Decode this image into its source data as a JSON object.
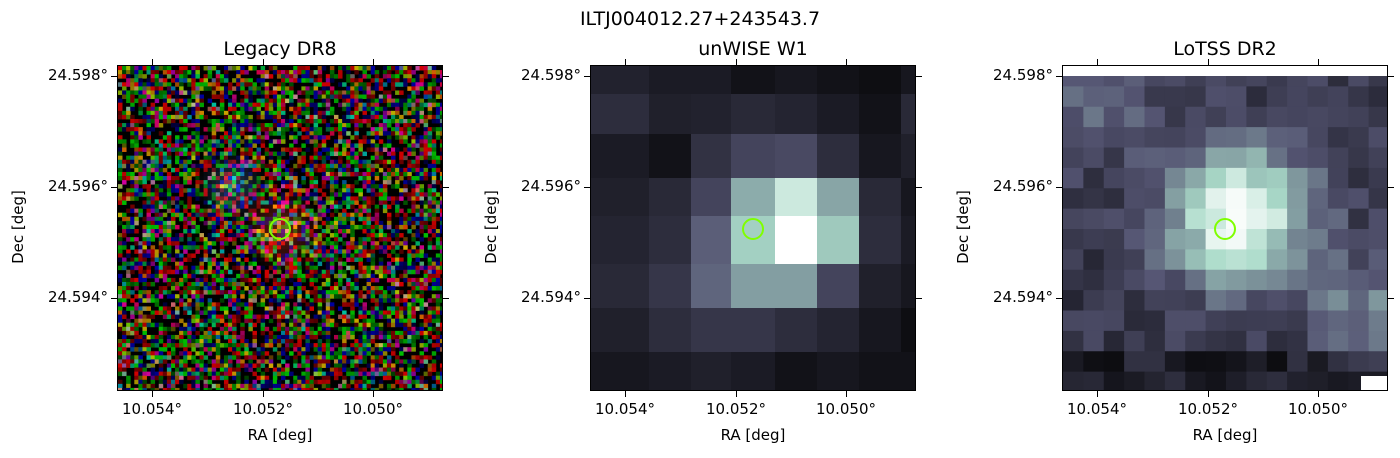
{
  "figure": {
    "suptitle": "ILTJ004012.27+243543.7"
  },
  "panels": [
    {
      "title": "Legacy DR8",
      "xlabel": "RA [deg]",
      "ylabel": "Dec [deg]",
      "xticks": [
        "10.054°",
        "10.052°",
        "10.050°"
      ],
      "yticks": [
        "24.598°",
        "24.596°",
        "24.594°"
      ],
      "colormap": "rgb-noise"
    },
    {
      "title": "unWISE W1",
      "xlabel": "RA [deg]",
      "ylabel": "Dec [deg]",
      "xticks": [
        "10.054°",
        "10.052°",
        "10.050°"
      ],
      "yticks": [
        "24.598°",
        "24.596°",
        "24.594°"
      ],
      "colormap": "bone"
    },
    {
      "title": "LoTSS DR2",
      "xlabel": "RA [deg]",
      "ylabel": "Dec [deg]",
      "xticks": [
        "10.054°",
        "10.052°",
        "10.050°"
      ],
      "yticks": [
        "24.598°",
        "24.596°",
        "24.594°"
      ],
      "colormap": "bone"
    }
  ],
  "marker": {
    "shape": "circle",
    "color": "#7fff00"
  }
}
